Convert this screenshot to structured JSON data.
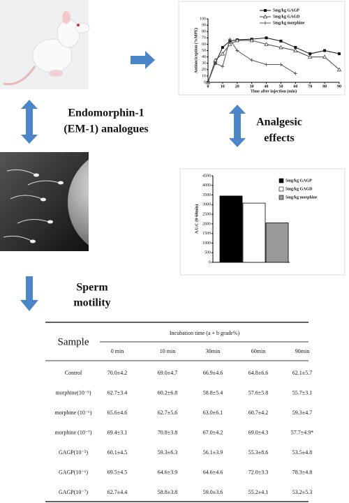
{
  "labels": {
    "em1": "Endomorphin-1",
    "em1_sub": "(EM-1) analogues",
    "analgesic": "Analgesic",
    "effects": "effects",
    "sperm": "Sperm",
    "motility": "motility"
  },
  "line_chart": {
    "type": "line",
    "xlabel": "Time after injection (min)",
    "ylabel": "Antinociception (%MPE)",
    "x": [
      0,
      5,
      10,
      15,
      20,
      30,
      40,
      50,
      60,
      70,
      80,
      90
    ],
    "series": [
      {
        "name": "5mg/kg GAGP",
        "color": "#111111",
        "marker": "square",
        "values": [
          0,
          30,
          55,
          65,
          67,
          68,
          70,
          65,
          55,
          45,
          50,
          45
        ]
      },
      {
        "name": "5mg/kg GAGD",
        "color": "#444444",
        "marker": "triangle",
        "values": [
          0,
          35,
          45,
          60,
          66,
          66,
          60,
          55,
          50,
          40,
          40,
          20
        ]
      },
      {
        "name": "5mg/kg morphine",
        "color": "#555555",
        "marker": "cross",
        "values": [
          0,
          30,
          25,
          68,
          50,
          35,
          28,
          28,
          14,
          null,
          null,
          null
        ]
      }
    ],
    "xlim": [
      0,
      90
    ],
    "xticks": [
      0,
      10,
      20,
      30,
      40,
      50,
      60,
      70,
      80,
      90
    ],
    "ylim": [
      0,
      100
    ],
    "yticks": [
      0,
      10,
      20,
      30,
      40,
      50,
      60,
      70,
      80,
      90,
      100
    ]
  },
  "bar_chart": {
    "type": "bar",
    "ylabel": "A.U.C (0-60min)",
    "series": [
      {
        "name": "5mg/kg GAGP",
        "color": "#000000",
        "values": [
          3450
        ]
      },
      {
        "name": "5mg/kg GAGD",
        "color": "#ffffff",
        "values": [
          3080
        ]
      },
      {
        "name": "5mg/kg morphine",
        "color": "#999999",
        "values": [
          2050
        ]
      }
    ],
    "ylim": [
      0,
      4500
    ],
    "yticks": [
      0,
      500,
      1000,
      1500,
      2000,
      2500,
      3000,
      3500,
      4000,
      4500
    ]
  },
  "table": {
    "sample_header": "Sample",
    "time_header": "Incubation time (a + b grade%)",
    "columns": [
      "0 min",
      "10 min",
      "30min",
      "60min",
      "90min"
    ],
    "rows": [
      [
        "Control",
        "70.0±4.2",
        "69.0±4.7",
        "66.9±4.6",
        "64.8±6.6",
        "62.1±5.7"
      ],
      [
        "morphine(10⁻⁵)",
        "62.7±3.4",
        "60.2±6.8",
        "58.8±5.4",
        "57.6±5.8",
        "55.7±3.1"
      ],
      [
        "morphine (10⁻⁶)",
        "65.6±4.6",
        "62.7±5.6",
        "63.0±6.1",
        "60.7±4.2",
        "59.3±4.7"
      ],
      [
        "morphine (10⁻⁷)",
        "69.4±3.1",
        "70.8±3.8",
        "67.0±4.2",
        "69.0±4.3",
        "57.7±4.9*"
      ],
      [
        "GAGP(10⁻⁵)",
        "60.1±4.5",
        "59.3±6.3",
        "56.1±3.9",
        "55.3±8.6",
        "53.5±4.8"
      ],
      [
        "GAGP(10⁻⁶)",
        "69.5±4.5",
        "64.6±3.9",
        "64.6±4.6",
        "72.0±3.3",
        "78.3±4.8"
      ],
      [
        "GAGP(10⁻⁷)",
        "62.7±4.4",
        "58.8±3.8",
        "59.0±3.6",
        "55.2±4.1",
        "53.2±5.3"
      ]
    ]
  }
}
